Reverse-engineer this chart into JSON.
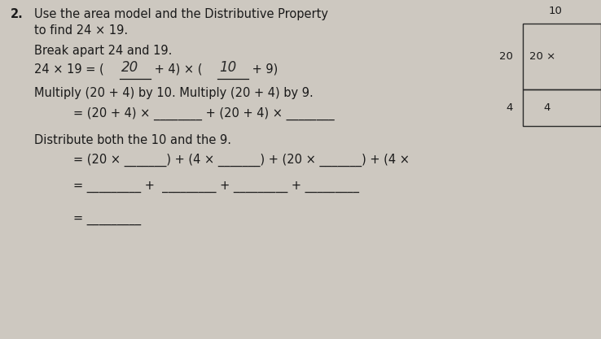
{
  "bg_color": "#cdc8c0",
  "text_color": "#1a1a1a",
  "box_color": "#2a2a2a",
  "handwrite_color": "#2a2a2a",
  "title_num": "2.",
  "title_line1": "Use the area model and the Distributive Property",
  "title_line2": "to find 24 × 19.",
  "break_label": "Break apart 24 and 19.",
  "eq1_pre": "24 × 19 = (",
  "eq1_ans1": "20",
  "eq1_mid": " + 4) × (",
  "eq1_ans2": "10",
  "eq1_end": " + 9)",
  "multiply_label": "Multiply (20 + 4) by 10. Multiply (20 + 4) by 9.",
  "eq2_text": "= (20 + 4) × ________ + (20 + 4) × ________",
  "distribute_label": "Distribute both the 10 and the 9.",
  "eq3_text": "= (20 × _______) + (4 × _______) + (20 × _______) + (4 ×",
  "eq4_text": "= _________ +  _________ + _________ + _________",
  "eq5_text": "= _________",
  "box_top_label": "10",
  "box_left1": "20",
  "box_left2": "4",
  "box_inner_top": "20 ×",
  "box_inner_bot": "4",
  "fs_main": 10.5,
  "fs_small": 9.5
}
